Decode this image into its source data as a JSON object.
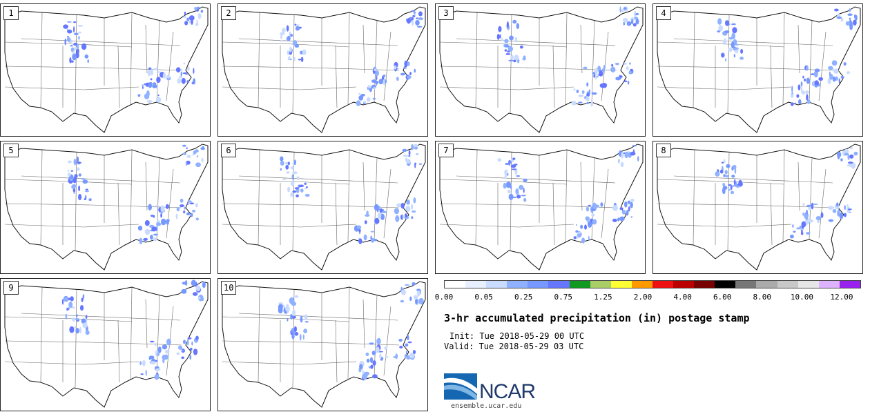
{
  "panels": [
    {
      "label": "1"
    },
    {
      "label": "2"
    },
    {
      "label": "3"
    },
    {
      "label": "4"
    },
    {
      "label": "5"
    },
    {
      "label": "6"
    },
    {
      "label": "7"
    },
    {
      "label": "8"
    },
    {
      "label": "9"
    },
    {
      "label": "10"
    }
  ],
  "colorbar": {
    "colors": [
      "#ffffff",
      "#e8f0ff",
      "#c9dbff",
      "#8fb1ff",
      "#7799ff",
      "#6677ff",
      "#119922",
      "#aace66",
      "#ffff33",
      "#ff9900",
      "#ee1111",
      "#bb0000",
      "#770000",
      "#000000",
      "#777777",
      "#aaaaaa",
      "#c8c8c8",
      "#e6e6e6",
      "#ddb3ff",
      "#9922ee"
    ],
    "tick_labels": [
      "0.00",
      "0.05",
      "0.25",
      "0.75",
      "1.25",
      "2.00",
      "4.00",
      "6.00",
      "8.00",
      "10.00",
      "12.00"
    ]
  },
  "title": "3-hr accumulated precipitation (in) postage stamp",
  "init": "Init: Tue 2018-05-29 00 UTC",
  "valid": "Valid: Tue 2018-05-29 03 UTC",
  "logo": {
    "name": "NCAR",
    "url": "ensemble.ucar.edu"
  }
}
